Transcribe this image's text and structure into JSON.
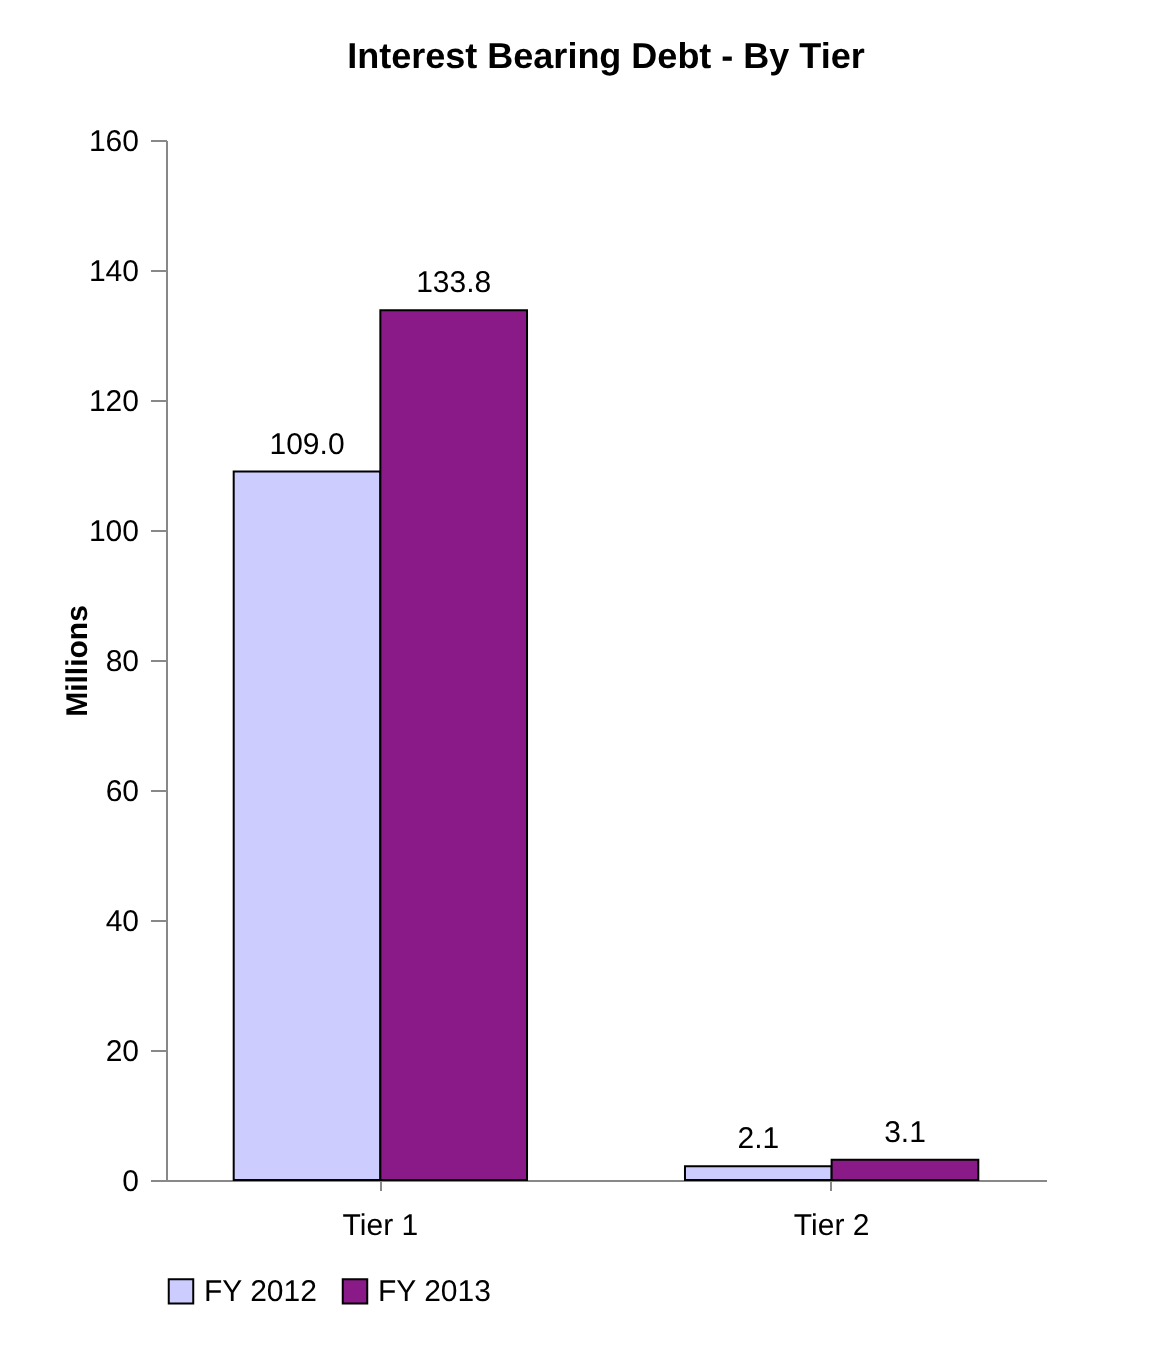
{
  "chart_data": {
    "type": "bar",
    "title": "Interest Bearing Debt - By Tier",
    "ylabel": "Millions",
    "categories": [
      "Tier 1",
      "Tier 2"
    ],
    "series": [
      {
        "name": "FY 2012",
        "color": "#ccccff",
        "values": [
          109.0,
          2.1
        ],
        "value_labels": [
          "109.0",
          "2.1"
        ]
      },
      {
        "name": "FY 2013",
        "color": "#8b1a89",
        "values": [
          133.8,
          3.1
        ],
        "value_labels": [
          "133.8",
          "3.1"
        ]
      }
    ],
    "ylim": [
      0,
      160
    ],
    "yticks": [
      0,
      20,
      40,
      60,
      80,
      100,
      120,
      140,
      160
    ],
    "grid": false,
    "legend": "bottom"
  }
}
